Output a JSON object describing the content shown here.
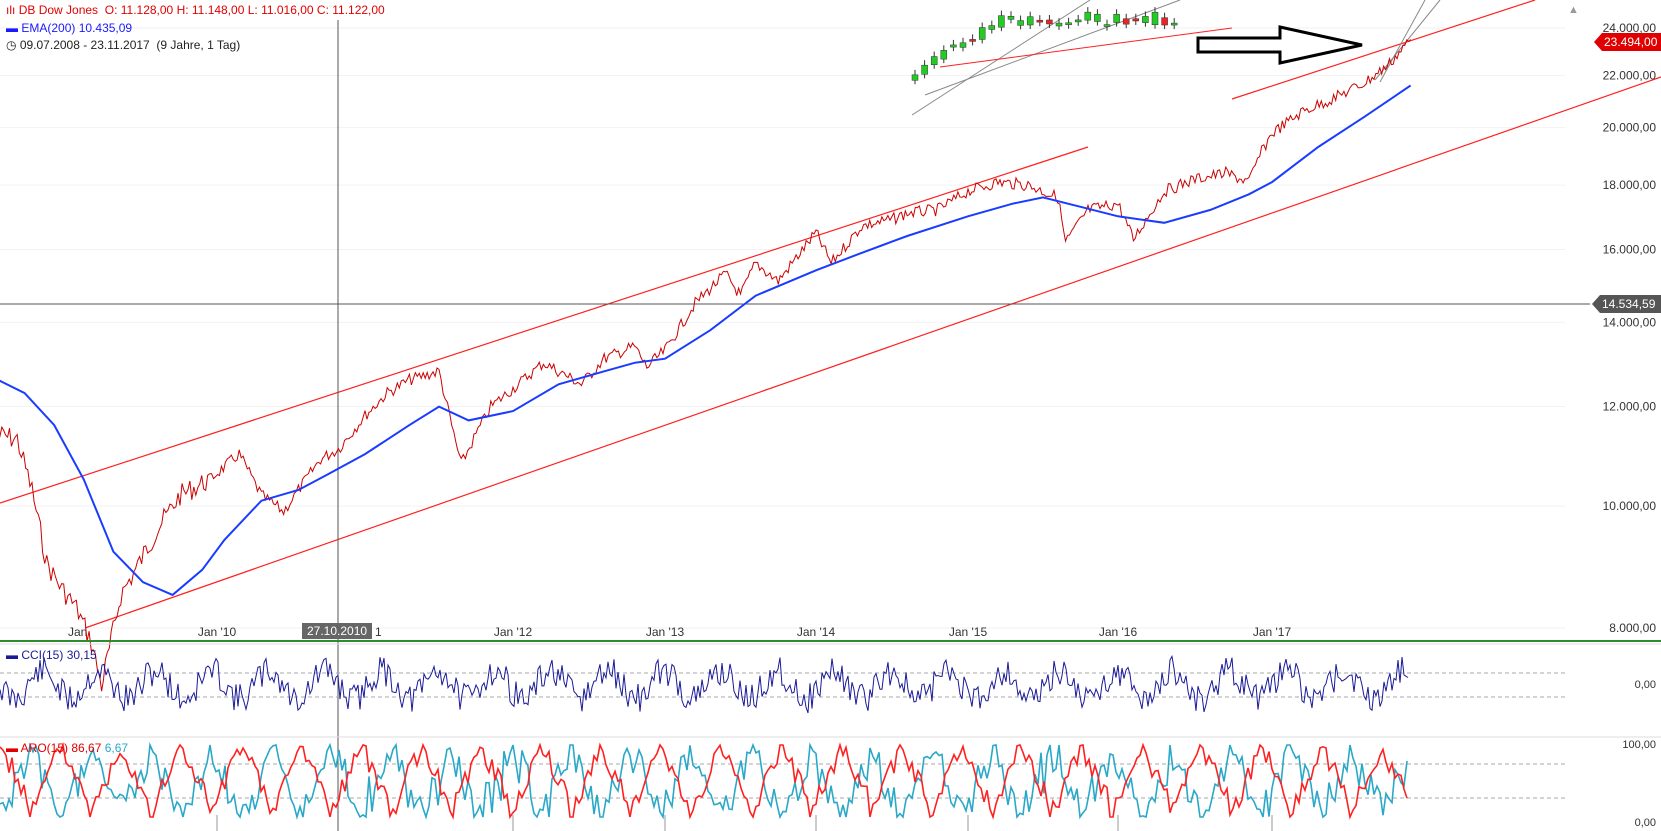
{
  "header": {
    "instrument": "DB Dow Jones",
    "ohlc": "O: 11.128,00  H: 11.148,00  L: 11.016,00  C: 11.122,00",
    "ema_label": "EMA(200)",
    "ema_value": "10.435,09",
    "period": "09.07.2008 - 23.11.2017",
    "period_note": "(9 Jahre, 1 Tag)"
  },
  "price_tags": {
    "last": "23.494,00",
    "crosshair": "14.534,59"
  },
  "crosshair_date": "27.10.2010",
  "cci": {
    "label": "CCI(15)",
    "value": "30,15"
  },
  "aroon": {
    "label": "ARO(15)",
    "up": "86,67",
    "down": "6,67"
  },
  "colors": {
    "price": "#cc0000",
    "ema": "#1a3cff",
    "channel": "#ff2020",
    "cci": "#1a1a99",
    "aroon_up": "#ff2020",
    "aroon_down": "#2aa8c8",
    "axis_line": "#2e8b2e"
  },
  "chart_data": [
    {
      "type": "line",
      "title": "DB Dow Jones",
      "x_ticks": [
        "Jan '10",
        "Jan '12",
        "Jan '13",
        "Jan '14",
        "Jan '15",
        "Jan '16",
        "Jan '17"
      ],
      "y_ticks": [
        "8.000,00",
        "10.000,00",
        "12.000,00",
        "14.000,00",
        "16.000,00",
        "18.000,00",
        "20.000,00",
        "22.000,00",
        "24.000,00"
      ],
      "y_scale": "log",
      "ylim": [
        8000,
        24500
      ],
      "series": [
        {
          "name": "DB Dow Jones",
          "x": [
            2008.52,
            2008.65,
            2008.75,
            2008.85,
            2008.95,
            2009.05,
            2009.15,
            2009.22,
            2009.35,
            2009.45,
            2009.6,
            2009.75,
            2009.95,
            2010.15,
            2010.3,
            2010.45,
            2010.55,
            2010.7,
            2010.82,
            2011.0,
            2011.15,
            2011.3,
            2011.5,
            2011.6,
            2011.65,
            2011.75,
            2011.85,
            2012.0,
            2012.2,
            2012.35,
            2012.45,
            2012.6,
            2012.8,
            2012.88,
            2013.0,
            2013.2,
            2013.4,
            2013.5,
            2013.6,
            2013.75,
            2014.0,
            2014.1,
            2014.3,
            2014.5,
            2014.6,
            2014.8,
            2015.0,
            2015.2,
            2015.4,
            2015.6,
            2015.65,
            2015.8,
            2016.0,
            2016.1,
            2016.3,
            2016.5,
            2016.7,
            2016.85,
            2016.92,
            2017.0,
            2017.2,
            2017.4,
            2017.6,
            2017.75,
            2017.9
          ],
          "y": [
            11400,
            11300,
            10300,
            9000,
            8600,
            8300,
            7800,
            7200,
            8500,
            8900,
            9600,
            10200,
            10500,
            11000,
            10200,
            9900,
            10300,
            10900,
            11100,
            11800,
            12300,
            12600,
            12800,
            11400,
            10800,
            11400,
            12000,
            12400,
            13000,
            12700,
            12500,
            13100,
            13400,
            12900,
            13300,
            14500,
            15300,
            14700,
            15600,
            15100,
            16500,
            15600,
            16700,
            16900,
            17100,
            17200,
            17800,
            18100,
            18000,
            17600,
            16200,
            17200,
            17400,
            16300,
            17800,
            18200,
            18400,
            18100,
            19000,
            19800,
            20600,
            21100,
            21700,
            22400,
            23500
          ]
        },
        {
          "name": "EMA(200)",
          "x": [
            2008.52,
            2008.7,
            2008.9,
            2009.1,
            2009.3,
            2009.5,
            2009.7,
            2009.9,
            2010.05,
            2010.3,
            2010.55,
            2010.75,
            2011.0,
            2011.3,
            2011.5,
            2011.7,
            2012.0,
            2012.3,
            2012.6,
            2012.8,
            2013.0,
            2013.3,
            2013.6,
            2014.0,
            2014.3,
            2014.6,
            2015.0,
            2015.3,
            2015.5,
            2015.75,
            2016.0,
            2016.3,
            2016.6,
            2016.85,
            2017.0,
            2017.3,
            2017.6,
            2017.9
          ],
          "y": [
            12600,
            12300,
            11600,
            10500,
            9200,
            8700,
            8500,
            8900,
            9400,
            10100,
            10300,
            10600,
            11000,
            11600,
            12000,
            11700,
            11900,
            12500,
            12800,
            13000,
            13100,
            13800,
            14700,
            15400,
            15900,
            16400,
            17000,
            17400,
            17600,
            17300,
            17000,
            16800,
            17200,
            17700,
            18100,
            19300,
            20400,
            21600
          ]
        }
      ]
    },
    {
      "type": "line",
      "title": "CCI(15)",
      "y_ticks": [
        "0,00"
      ],
      "series": [
        {
          "name": "CCI(15)",
          "last": 30.15
        }
      ]
    },
    {
      "type": "line",
      "title": "ARO(15)",
      "y_ticks": [
        "100,00",
        "0,00"
      ],
      "ylim": [
        0,
        100
      ],
      "series": [
        {
          "name": "Aroon Up",
          "last": 86.67
        },
        {
          "name": "Aroon Down",
          "last": 6.67
        }
      ]
    }
  ]
}
